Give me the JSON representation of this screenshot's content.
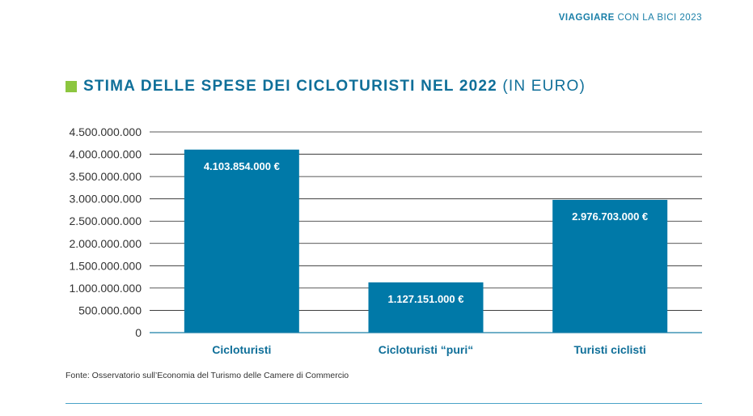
{
  "header": {
    "bold": "VIAGGIARE",
    "rest": "CON LA BICI 2023"
  },
  "title": {
    "main": "STIMA DELLE SPESE DEI CICLOTURISTI NEL 2022",
    "unit": "(IN EURO)"
  },
  "colors": {
    "bar": "#0079a8",
    "accent": "#8cc63f",
    "grid": "#222222",
    "axis": "#1a7fa8"
  },
  "chart_data": {
    "type": "bar",
    "title": "STIMA DELLE SPESE DEI CICLOTURISTI NEL 2022 (IN EURO)",
    "categories": [
      "Cicloturisti",
      "Cicloturisti “puri“",
      "Turisti ciclisti"
    ],
    "values": [
      4103854000,
      1127151000,
      2976703000
    ],
    "value_labels": [
      "4.103.854.000 €",
      "1.127.151.000 €",
      "2.976.703.000 €"
    ],
    "yticks": [
      0,
      500000000,
      1000000000,
      1500000000,
      2000000000,
      2500000000,
      3000000000,
      3500000000,
      4000000000,
      4500000000
    ],
    "ytick_labels": [
      "0",
      "500.000.000",
      "1.000.000.000",
      "1.500.000.000",
      "2.000.000.000",
      "2.500.000.000",
      "3.000.000.000",
      "3.500.000.000",
      "4.000.000.000",
      "4.500.000.000"
    ],
    "ylim": [
      0,
      4500000000
    ],
    "xlabel": "",
    "ylabel": ""
  },
  "source": "Fonte: Osservatorio sull’Economia del Turismo delle Camere di Commercio"
}
